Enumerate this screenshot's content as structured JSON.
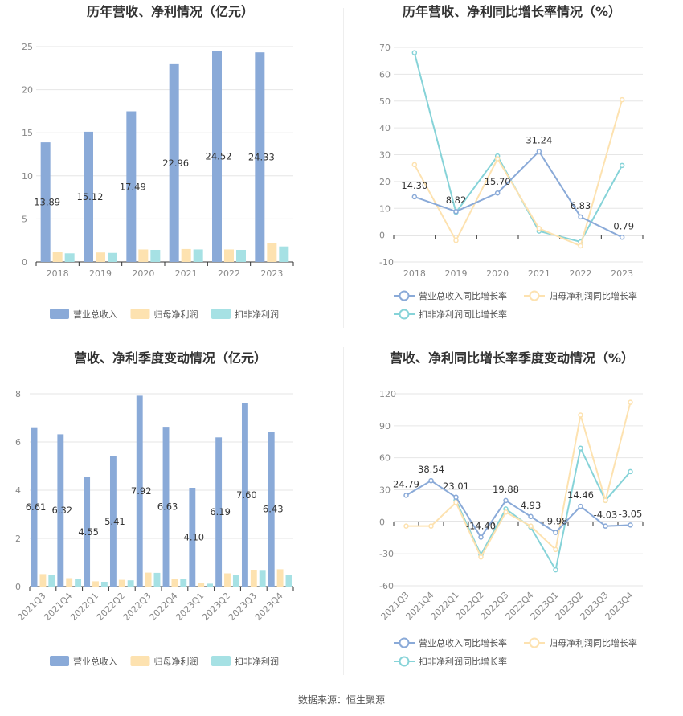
{
  "colors": {
    "revenue": "#8aaad8",
    "net_profit": "#fde2b0",
    "deducted_profit": "#a6e1e4",
    "rev_line": "#8aaad8",
    "net_line": "#fde2b0",
    "ded_line": "#86d3d8"
  },
  "source": "数据来源：恒生聚源",
  "chart_data": [
    {
      "type": "bar",
      "title": "历年营收、净利情况（亿元）",
      "categories": [
        "2018",
        "2019",
        "2020",
        "2021",
        "2022",
        "2023"
      ],
      "ylim": [
        0,
        25
      ],
      "yticks": [
        0,
        5,
        10,
        15,
        20,
        25
      ],
      "series": [
        {
          "name": "营业总收入",
          "values": [
            13.89,
            15.12,
            17.49,
            22.96,
            24.52,
            24.33
          ],
          "labels": [
            "13.89",
            "15.12",
            "17.49",
            "22.96",
            "24.52",
            "24.33"
          ]
        },
        {
          "name": "归母净利润",
          "values": [
            1.15,
            1.1,
            1.45,
            1.5,
            1.45,
            2.2
          ]
        },
        {
          "name": "扣非净利润",
          "values": [
            1.0,
            1.05,
            1.4,
            1.45,
            1.4,
            1.8
          ]
        }
      ],
      "legend": "bottom"
    },
    {
      "type": "line",
      "title": "历年营收、净利同比增长率情况（%）",
      "categories": [
        "2018",
        "2019",
        "2020",
        "2021",
        "2022",
        "2023"
      ],
      "ylim": [
        -10,
        70
      ],
      "yticks": [
        -10,
        0,
        10,
        20,
        30,
        40,
        50,
        60,
        70
      ],
      "series": [
        {
          "name": "营业总收入同比增长率",
          "values": [
            14.3,
            8.82,
            15.7,
            31.24,
            6.83,
            -0.79
          ],
          "labels": [
            "14.30",
            "8.82",
            "15.70",
            "31.24",
            "6.83",
            "-0.79"
          ]
        },
        {
          "name": "归母净利润同比增长率",
          "values": [
            26.3,
            -2.0,
            28.5,
            2.5,
            -4.0,
            50.5
          ]
        },
        {
          "name": "扣非净利润同比增长率",
          "values": [
            68.0,
            8.5,
            29.5,
            1.5,
            -2.5,
            26.0
          ]
        }
      ],
      "legend": "bottom"
    },
    {
      "type": "bar",
      "title": "营收、净利季度变动情况（亿元）",
      "categories": [
        "2021Q3",
        "2021Q4",
        "2022Q1",
        "2022Q2",
        "2022Q3",
        "2022Q4",
        "2023Q1",
        "2023Q2",
        "2023Q3",
        "2023Q4"
      ],
      "ylim": [
        0,
        8
      ],
      "yticks": [
        0,
        2,
        4,
        6,
        8
      ],
      "series": [
        {
          "name": "营业总收入",
          "values": [
            6.61,
            6.32,
            4.55,
            5.41,
            7.92,
            6.63,
            4.1,
            6.19,
            7.6,
            6.43
          ],
          "labels": [
            "6.61",
            "6.32",
            "4.55",
            "5.41",
            "7.92",
            "6.63",
            "4.10",
            "6.19",
            "7.60",
            "6.43"
          ]
        },
        {
          "name": "归母净利润",
          "values": [
            0.52,
            0.35,
            0.22,
            0.28,
            0.58,
            0.33,
            0.15,
            0.55,
            0.7,
            0.72
          ]
        },
        {
          "name": "扣非净利润",
          "values": [
            0.5,
            0.33,
            0.2,
            0.26,
            0.57,
            0.31,
            0.12,
            0.48,
            0.69,
            0.48
          ]
        }
      ],
      "legend": "bottom"
    },
    {
      "type": "line",
      "title": "营收、净利同比增长率季度变动情况（%）",
      "categories": [
        "2021Q3",
        "2021Q4",
        "2022Q1",
        "2022Q2",
        "2022Q3",
        "2022Q4",
        "2023Q1",
        "2023Q2",
        "2023Q3",
        "2023Q4"
      ],
      "ylim": [
        -60,
        120
      ],
      "yticks": [
        -60,
        -30,
        0,
        30,
        60,
        90,
        120
      ],
      "series": [
        {
          "name": "营业总收入同比增长率",
          "values": [
            24.79,
            38.54,
            23.01,
            -14.4,
            19.88,
            4.93,
            -9.98,
            14.46,
            -4.03,
            -3.05
          ],
          "labels": [
            "24.79",
            "38.54",
            "23.01",
            "-14.40",
            "19.88",
            "4.93",
            "-9.98",
            "14.46",
            "-4.03",
            "-3.05"
          ]
        },
        {
          "name": "归母净利润同比增长率",
          "values": [
            -4.0,
            -4.0,
            18.0,
            -33.0,
            9.0,
            -4.0,
            -26.0,
            100.0,
            20.0,
            112.0
          ]
        },
        {
          "name": "扣非净利润同比增长率",
          "values": [
            null,
            null,
            20.0,
            -31.0,
            12.0,
            -5.0,
            -45.0,
            69.0,
            20.0,
            47.0
          ]
        }
      ],
      "legend": "bottom"
    }
  ]
}
